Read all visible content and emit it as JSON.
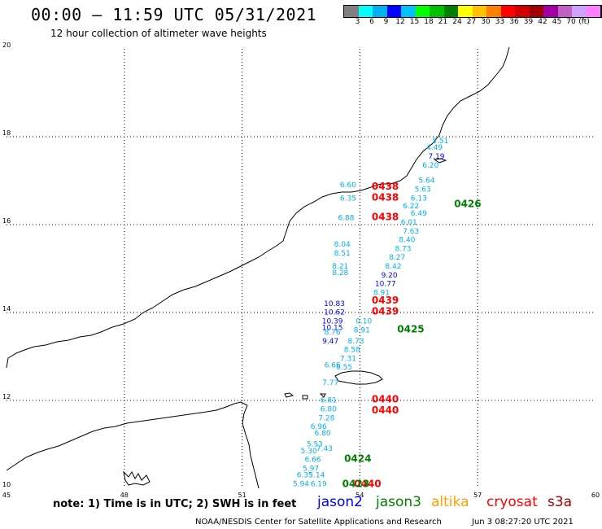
{
  "header": {
    "title": "00:00 – 11:59 UTC 05/31/2021",
    "subtitle": "12 hour collection of altimeter wave heights"
  },
  "colorbar": {
    "unit_label": "(ft)",
    "colors": [
      "#808080",
      "#00ffff",
      "#00b0f0",
      "#0000ff",
      "#00c0ff",
      "#00ff00",
      "#00c000",
      "#008000",
      "#ffff00",
      "#ffc000",
      "#ff8000",
      "#ff0000",
      "#d00000",
      "#a00000",
      "#a000a0",
      "#c060c0",
      "#d0a0ff",
      "#ff80ff",
      "#000000"
    ],
    "labels": [
      "3",
      "6",
      "9",
      "12",
      "15",
      "18",
      "21",
      "24",
      "27",
      "30",
      "33",
      "36",
      "39",
      "42",
      "45",
      "70"
    ]
  },
  "axes": {
    "x_ticks": [
      "45",
      "48",
      "51",
      "54",
      "57",
      "60"
    ],
    "y_ticks": [
      "20",
      "18",
      "16",
      "14",
      "12",
      "10"
    ]
  },
  "map_data": {
    "lon_range": [
      45,
      60
    ],
    "lat_range": [
      10,
      20
    ],
    "swh_points": [
      {
        "lon": 56.05,
        "lat": 17.85,
        "text": "5.51",
        "color": "#00b0f0"
      },
      {
        "lon": 55.9,
        "lat": 17.7,
        "text": "4.49",
        "color": "#00b0f0"
      },
      {
        "lon": 55.95,
        "lat": 17.5,
        "text": "7.19",
        "color": "#0000ff"
      },
      {
        "lon": 55.8,
        "lat": 17.3,
        "text": "6.20",
        "color": "#00b0f0"
      },
      {
        "lon": 55.7,
        "lat": 16.95,
        "text": "5.64",
        "color": "#00b0f0"
      },
      {
        "lon": 55.6,
        "lat": 16.75,
        "text": "5.63",
        "color": "#00b0f0"
      },
      {
        "lon": 55.5,
        "lat": 16.55,
        "text": "6.13",
        "color": "#00b0f0"
      },
      {
        "lon": 55.3,
        "lat": 16.37,
        "text": "6.22",
        "color": "#00b0f0"
      },
      {
        "lon": 55.5,
        "lat": 16.2,
        "text": "6.49",
        "color": "#00b0f0"
      },
      {
        "lon": 55.25,
        "lat": 16.0,
        "text": "6.01",
        "color": "#00b0f0"
      },
      {
        "lon": 55.3,
        "lat": 15.8,
        "text": "7.63",
        "color": "#00b0f0"
      },
      {
        "lon": 55.2,
        "lat": 15.6,
        "text": "8.40",
        "color": "#00b0f0"
      },
      {
        "lon": 55.1,
        "lat": 15.4,
        "text": "8.73",
        "color": "#00b0f0"
      },
      {
        "lon": 54.95,
        "lat": 15.2,
        "text": "8.27",
        "color": "#00b0f0"
      },
      {
        "lon": 54.85,
        "lat": 15.0,
        "text": "8.42",
        "color": "#00b0f0"
      },
      {
        "lon": 54.75,
        "lat": 14.8,
        "text": "9.20",
        "color": "#0000ff"
      },
      {
        "lon": 54.65,
        "lat": 14.6,
        "text": "10.77",
        "color": "#0000ff"
      },
      {
        "lon": 54.55,
        "lat": 14.4,
        "text": "8.91",
        "color": "#00b0f0"
      },
      {
        "lon": 53.7,
        "lat": 16.85,
        "text": "6.60",
        "color": "#00b0f0"
      },
      {
        "lon": 53.7,
        "lat": 16.55,
        "text": "6.35",
        "color": "#00b0f0"
      },
      {
        "lon": 53.65,
        "lat": 16.1,
        "text": "6.88",
        "color": "#00b0f0"
      },
      {
        "lon": 53.55,
        "lat": 15.5,
        "text": "8.04",
        "color": "#00b0f0"
      },
      {
        "lon": 53.55,
        "lat": 15.3,
        "text": "8.51",
        "color": "#00b0f0"
      },
      {
        "lon": 53.5,
        "lat": 15.0,
        "text": "8.21",
        "color": "#00b0f0"
      },
      {
        "lon": 53.5,
        "lat": 14.85,
        "text": "8.28",
        "color": "#00b0f0"
      },
      {
        "lon": 53.35,
        "lat": 14.15,
        "text": "10.83",
        "color": "#0000ff"
      },
      {
        "lon": 53.35,
        "lat": 13.95,
        "text": "10.62",
        "color": "#0000ff"
      },
      {
        "lon": 53.3,
        "lat": 13.75,
        "text": "10.39",
        "color": "#0000ff"
      },
      {
        "lon": 53.3,
        "lat": 13.6,
        "text": "10.15",
        "color": "#0000ff"
      },
      {
        "lon": 53.3,
        "lat": 13.5,
        "text": "8.76",
        "color": "#00b0f0"
      },
      {
        "lon": 54.1,
        "lat": 13.75,
        "text": "0.10",
        "color": "#00b0f0"
      },
      {
        "lon": 54.05,
        "lat": 13.55,
        "text": "8.91",
        "color": "#00b0f0"
      },
      {
        "lon": 53.25,
        "lat": 13.3,
        "text": "9.47",
        "color": "#0000ff"
      },
      {
        "lon": 53.9,
        "lat": 13.3,
        "text": "8.73",
        "color": "#00b0f0"
      },
      {
        "lon": 53.8,
        "lat": 13.1,
        "text": "8.58",
        "color": "#00b0f0"
      },
      {
        "lon": 53.7,
        "lat": 12.9,
        "text": "7.31",
        "color": "#00b0f0"
      },
      {
        "lon": 53.3,
        "lat": 12.75,
        "text": "6.66",
        "color": "#00b0f0"
      },
      {
        "lon": 53.6,
        "lat": 12.7,
        "text": "6.55",
        "color": "#00b0f0"
      },
      {
        "lon": 53.25,
        "lat": 12.35,
        "text": "7.77",
        "color": "#00b0f0"
      },
      {
        "lon": 53.2,
        "lat": 11.95,
        "text": "6.81",
        "color": "#00b0f0"
      },
      {
        "lon": 53.2,
        "lat": 11.75,
        "text": "6.80",
        "color": "#00b0f0"
      },
      {
        "lon": 53.15,
        "lat": 11.55,
        "text": "7.28",
        "color": "#00b0f0"
      },
      {
        "lon": 52.95,
        "lat": 11.35,
        "text": "6.96",
        "color": "#00b0f0"
      },
      {
        "lon": 53.05,
        "lat": 11.2,
        "text": "6.80",
        "color": "#00b0f0"
      },
      {
        "lon": 52.85,
        "lat": 10.95,
        "text": "5.53",
        "color": "#00b0f0"
      },
      {
        "lon": 52.7,
        "lat": 10.8,
        "text": "5.30",
        "color": "#00b0f0"
      },
      {
        "lon": 53.1,
        "lat": 10.85,
        "text": "7.43",
        "color": "#00b0f0"
      },
      {
        "lon": 52.8,
        "lat": 10.6,
        "text": "6.66",
        "color": "#00b0f0"
      },
      {
        "lon": 52.75,
        "lat": 10.4,
        "text": "5.97",
        "color": "#00b0f0"
      },
      {
        "lon": 52.6,
        "lat": 10.25,
        "text": "6.35",
        "color": "#00b0f0"
      },
      {
        "lon": 52.9,
        "lat": 10.25,
        "text": "5.14",
        "color": "#00b0f0"
      },
      {
        "lon": 52.5,
        "lat": 10.05,
        "text": "5.94",
        "color": "#00b0f0"
      },
      {
        "lon": 52.95,
        "lat": 10.05,
        "text": "6.19",
        "color": "#00b0f0"
      }
    ],
    "time_labels": [
      {
        "lon": 54.3,
        "lat": 16.8,
        "text": "0438",
        "color": "#ff0000"
      },
      {
        "lon": 54.3,
        "lat": 16.55,
        "text": "0438",
        "color": "#ff0000"
      },
      {
        "lon": 54.3,
        "lat": 16.1,
        "text": "0438",
        "color": "#ff0000"
      },
      {
        "lon": 54.3,
        "lat": 14.2,
        "text": "0439",
        "color": "#ff0000"
      },
      {
        "lon": 54.3,
        "lat": 13.95,
        "text": "0439",
        "color": "#ff0000"
      },
      {
        "lon": 54.3,
        "lat": 11.95,
        "text": "0440",
        "color": "#ff0000"
      },
      {
        "lon": 54.3,
        "lat": 11.7,
        "text": "0440",
        "color": "#ff0000"
      },
      {
        "lon": 53.85,
        "lat": 10.03,
        "text": "0440",
        "color": "#ff0000"
      },
      {
        "lon": 56.4,
        "lat": 16.4,
        "text": "0426",
        "color": "#008000"
      },
      {
        "lon": 54.95,
        "lat": 13.55,
        "text": "0425",
        "color": "#008000"
      },
      {
        "lon": 53.6,
        "lat": 10.6,
        "text": "0424",
        "color": "#008000"
      },
      {
        "lon": 53.55,
        "lat": 10.03,
        "text": "0423",
        "color": "#008000"
      }
    ]
  },
  "footer": {
    "note": "note: 1) Time is in UTC; 2) SWH is in feet",
    "satellites": [
      {
        "name": "jason2",
        "color": "#0000ff"
      },
      {
        "name": "jason3",
        "color": "#008000"
      },
      {
        "name": "altika",
        "color": "#ffa000"
      },
      {
        "name": "cryosat",
        "color": "#ff0000"
      },
      {
        "name": "s3a",
        "color": "#a00000"
      }
    ],
    "credit": "NOAA/NESDIS Center for Satellite Applications and Research",
    "timestamp": "Jun  3 08:27:20 UTC 2021"
  }
}
